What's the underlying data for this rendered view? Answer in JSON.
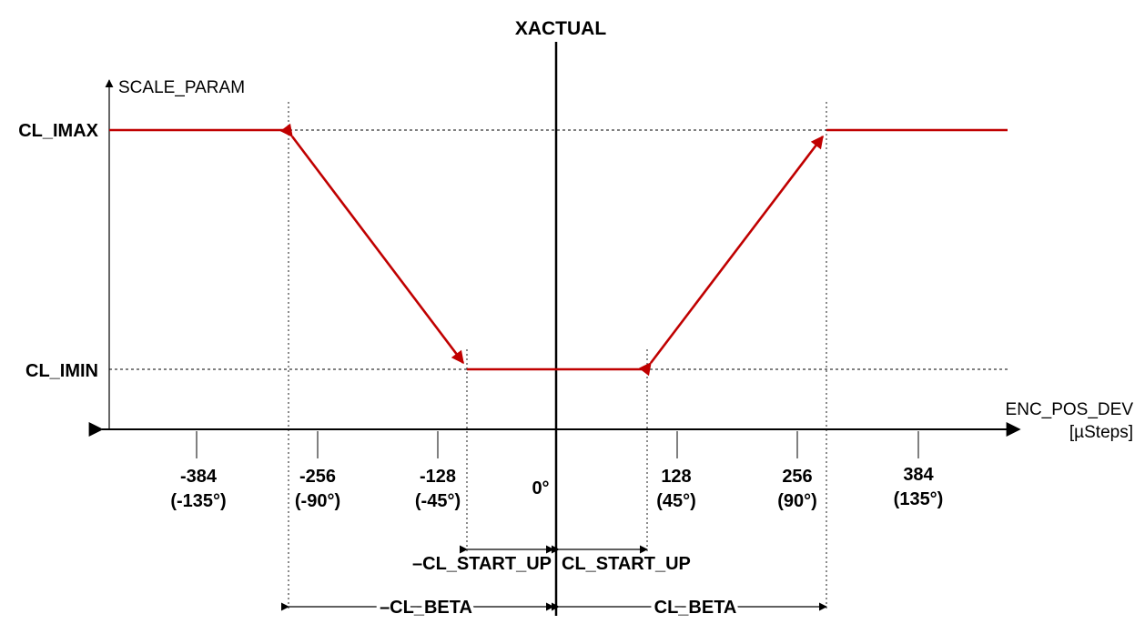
{
  "diagram": {
    "top_label": "XACTUAL",
    "y_axis_label": "SCALE_PARAM",
    "x_axis_label": "ENC_POS_DEV",
    "x_axis_unit": "[µSteps]",
    "y_levels": {
      "max": "CL_IMAX",
      "min": "CL_IMIN"
    },
    "ticks": [
      {
        "value": "-384",
        "angle": "(-135°)"
      },
      {
        "value": "-256",
        "angle": "(-90°)"
      },
      {
        "value": "-128",
        "angle": "(-45°)"
      },
      {
        "value": "0°",
        "angle": ""
      },
      {
        "value": "128",
        "angle": "(45°)"
      },
      {
        "value": "256",
        "angle": "(90°)"
      },
      {
        "value": "384",
        "angle": "(135°)"
      }
    ],
    "dimensions": {
      "neg_start_up": "–CL_START_UP",
      "pos_start_up": "CL_START_UP",
      "neg_beta": "–CL_BETA",
      "pos_beta": "CL_BETA"
    },
    "colors": {
      "curve": "#c00000",
      "axis": "#000000"
    }
  }
}
